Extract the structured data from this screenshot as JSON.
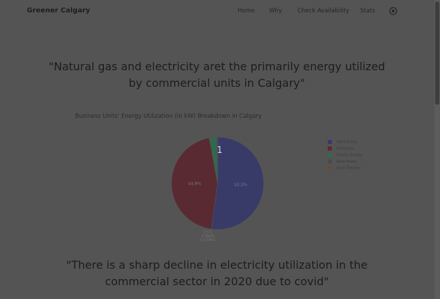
{
  "nav": {
    "brand": "Greener Calgary",
    "links": [
      "Home",
      "Why",
      "Check Availability",
      "Stats"
    ]
  },
  "headline_1": "\"Natural gas and electricity aret the primarily energy utilized by commercial units in Calgary\"",
  "chart_data": {
    "type": "pie",
    "title": "Business Units' Energy Utilization (in kW) Breakdown in Calgary",
    "annotation": "1",
    "categories": [
      "Natural Gas",
      "Electricity",
      "District Energy",
      "Solar Power",
      "Solar Thermal"
    ],
    "values": [
      52.2,
      44.9,
      2.5,
      0.384,
      0.0278
    ],
    "value_labels": [
      "52.2%",
      "44.9%",
      "2.5%",
      "0.384%",
      "0.0278%"
    ],
    "colors": [
      "#383b68",
      "#5a2a33",
      "#2e6a4c",
      "#4a4a4a",
      "#6a4a3a"
    ],
    "legend": "top-right"
  },
  "headline_2": "\"There is a sharp decline in electricity utilization in the commercial sector in 2020 due to covid\""
}
